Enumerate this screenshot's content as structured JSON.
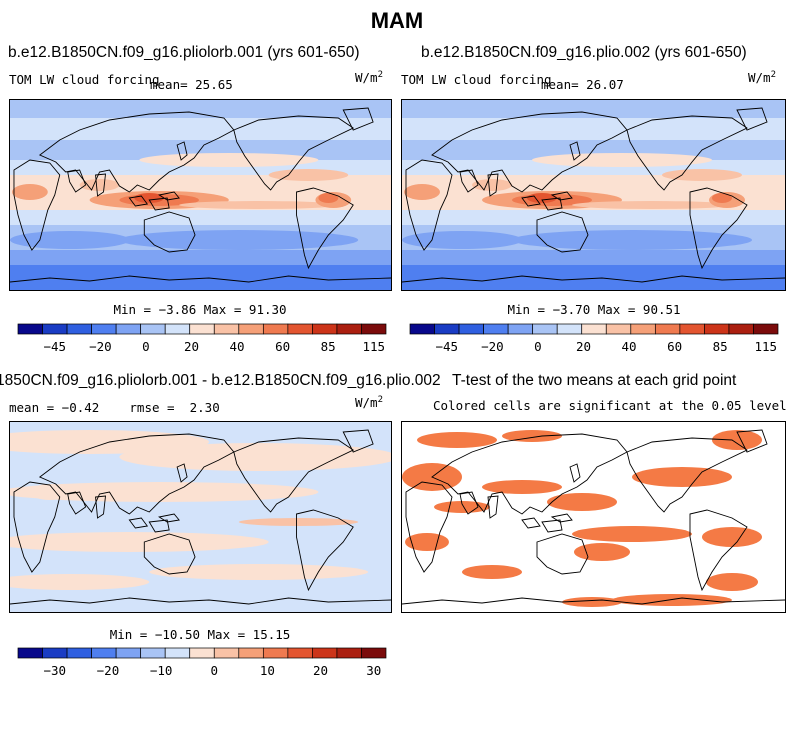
{
  "page": {
    "title": "MAM"
  },
  "panels": [
    {
      "id": "p1",
      "title": "b.e12.B1850CN.f09_g16.pliolorb.001 (yrs 601-650)",
      "left_label": "TOM LW cloud forcing",
      "stat": "mean=  25.65",
      "units": "W/m",
      "units_exp": "2",
      "minmax": "Min = −3.86 Max = 91.30",
      "kind": "field"
    },
    {
      "id": "p2",
      "title": "b.e12.B1850CN.f09_g16.plio.002 (yrs 601-650)",
      "left_label": "TOM LW cloud forcing",
      "stat": "mean=  26.07",
      "units": "W/m",
      "units_exp": "2",
      "minmax": "Min = −3.70 Max = 90.51",
      "kind": "field"
    },
    {
      "id": "p3",
      "title": "1850CN.f09_g16.pliolorb.001 - b.e12.B1850CN.f09_g16.plio.002",
      "left_label": "mean = −0.42    rmse =  2.30",
      "units": "W/m",
      "units_exp": "2",
      "minmax": "Min = −10.50 Max = 15.15",
      "kind": "difference"
    },
    {
      "id": "p4",
      "title": "T-test of the two means at each grid point",
      "subtitle": "Colored cells are significant at the 0.05 level",
      "kind": "significance"
    }
  ],
  "colorbars": [
    {
      "labels": [
        "−45",
        "−20",
        "0",
        "20",
        "40",
        "60",
        "85",
        "115"
      ],
      "colors": [
        "#08088b",
        "#1a3cc4",
        "#2f5fe0",
        "#4f7ff0",
        "#7ea3f3",
        "#a9c4f5",
        "#d3e3fa",
        "#fbe1d2",
        "#f9c2a6",
        "#f5a078",
        "#ef7a50",
        "#e35530",
        "#cc3419",
        "#ab1f10",
        "#7b0b0b"
      ]
    },
    {
      "labels": [
        "−45",
        "−20",
        "0",
        "20",
        "40",
        "60",
        "85",
        "115"
      ],
      "colors": [
        "#08088b",
        "#1a3cc4",
        "#2f5fe0",
        "#4f7ff0",
        "#7ea3f3",
        "#a9c4f5",
        "#d3e3fa",
        "#fbe1d2",
        "#f9c2a6",
        "#f5a078",
        "#ef7a50",
        "#e35530",
        "#cc3419",
        "#ab1f10",
        "#7b0b0b"
      ]
    },
    {
      "labels": [
        "−30",
        "−20",
        "−10",
        "0",
        "10",
        "20",
        "30"
      ],
      "colors": [
        "#08088b",
        "#1a3cc4",
        "#2f5fe0",
        "#4f7ff0",
        "#7ea3f3",
        "#a9c4f5",
        "#d3e3fa",
        "#fbe1d2",
        "#f9c2a6",
        "#f5a078",
        "#ef7a50",
        "#e35530",
        "#cc3419",
        "#ab1f10",
        "#7b0b0b"
      ]
    }
  ],
  "chart_data": {
    "type": "heatmap",
    "title": "MAM",
    "variable": "TOM LW cloud forcing",
    "units": "W/m2",
    "panels": [
      {
        "title": "b.e12.B1850CN.f09_g16.pliolorb.001 (yrs 601-650)",
        "mean": 25.65,
        "min": -3.86,
        "max": 91.3
      },
      {
        "title": "b.e12.B1850CN.f09_g16.plio.002 (yrs 601-650)",
        "mean": 26.07,
        "min": -3.7,
        "max": 90.51
      },
      {
        "title": "pliolorb.001 - plio.002",
        "mean": -0.42,
        "rmse": 2.3,
        "min": -10.5,
        "max": 15.15
      },
      {
        "title": "T-test of the two means at each grid point",
        "note": "Colored cells are significant at the 0.05 level"
      }
    ],
    "colorbar_field": {
      "ticks": [
        -45,
        -20,
        0,
        20,
        40,
        60,
        85,
        115
      ]
    },
    "colorbar_difference": {
      "ticks": [
        -30,
        -20,
        -10,
        0,
        10,
        20,
        30
      ]
    }
  }
}
